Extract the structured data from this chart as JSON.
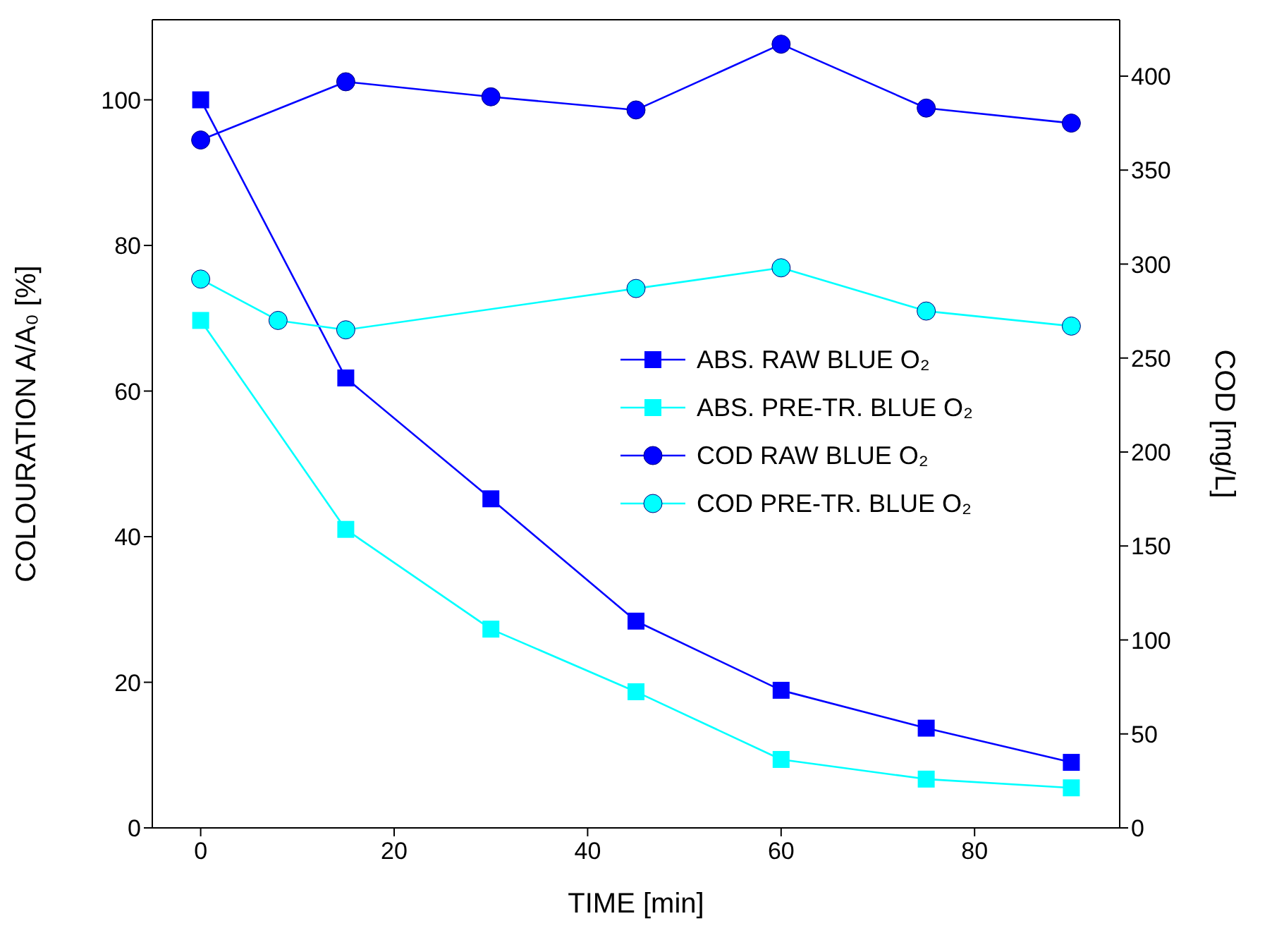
{
  "chart_data": {
    "type": "line",
    "xlabel": "TIME [min]",
    "ylabel": "COLOURATION A/A₀ [%]",
    "y2label": "COD [mg/L]",
    "xlim": [
      -5,
      95
    ],
    "xticks": [
      0,
      20,
      40,
      60,
      80
    ],
    "ylim": [
      0,
      111
    ],
    "yticks": [
      0,
      20,
      40,
      60,
      80,
      100
    ],
    "y2lim": [
      0,
      430
    ],
    "y2ticks": [
      0,
      50,
      100,
      150,
      200,
      250,
      300,
      350,
      400
    ],
    "grid": false,
    "legend": "right",
    "line_style": "solid",
    "series": [
      {
        "name": "ABS. RAW BLUE O₂",
        "color": "#0000ff",
        "marker": "square",
        "x": [
          0,
          15,
          30,
          45,
          60,
          75,
          90
        ],
        "values": [
          100,
          61.8,
          45.2,
          28.4,
          18.9,
          13.7,
          9.0
        ]
      },
      {
        "name": "ABS. PRE-TR. BLUE O₂",
        "color": "#00ffff",
        "marker": "square",
        "x": [
          0,
          15,
          30,
          45,
          60,
          75,
          90
        ],
        "values": [
          69.7,
          41.0,
          27.3,
          18.7,
          9.4,
          6.7,
          5.5
        ]
      },
      {
        "name": "COD RAW BLUE O₂",
        "color": "#0000ff",
        "marker": "circle",
        "axis": "y2",
        "x": [
          0,
          15,
          30,
          45,
          60,
          75,
          90
        ],
        "values": [
          366,
          397,
          389,
          382,
          417,
          383,
          375
        ]
      },
      {
        "name": "COD PRE-TR. BLUE O₂",
        "color": "#00ffff",
        "marker": "circle",
        "axis": "y2",
        "x": [
          0,
          8,
          15,
          45,
          60,
          75,
          90
        ],
        "values": [
          292,
          270,
          265,
          287,
          298,
          275,
          267
        ]
      }
    ]
  }
}
